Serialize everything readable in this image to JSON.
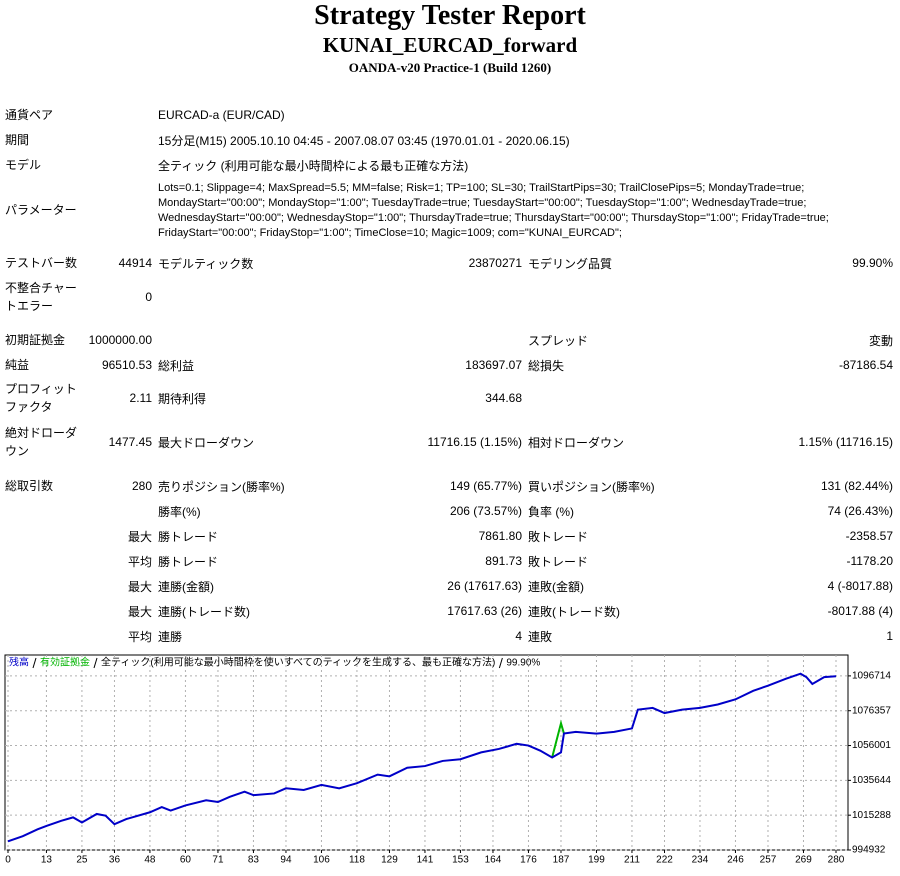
{
  "report": {
    "title": "Strategy Tester Report",
    "subtitle": "KUNAI_EURCAD_forward",
    "server": "OANDA-v20 Practice-1 (Build 1260)",
    "info": [
      {
        "label": "通貨ペア",
        "value": "EURCAD-a (EUR/CAD)"
      },
      {
        "label": "期間",
        "value": "15分足(M15) 2005.10.10 04:45 - 2007.08.07 03:45 (1970.01.01 - 2020.06.15)"
      },
      {
        "label": "モデル",
        "value": "全ティック (利用可能な最小時間枠による最も正確な方法)"
      }
    ],
    "parameters": {
      "label": "パラメーター",
      "lines": [
        "Lots=0.1; Slippage=4; MaxSpread=5.5; MM=false; Risk=1; TP=100; SL=30; TrailStartPips=30; TrailClosePips=5; MondayTrade=true;",
        "MondayStart=\"00:00\"; MondayStop=\"1:00\"; TuesdayTrade=true; TuesdayStart=\"00:00\"; TuesdayStop=\"1:00\"; WednesdayTrade=true;",
        "WednesdayStart=\"00:00\"; WednesdayStop=\"1:00\"; ThursdayTrade=true; ThursdayStart=\"00:00\"; ThursdayStop=\"1:00\"; FridayTrade=true;",
        "FridayStart=\"00:00\"; FridayStop=\"1:00\"; TimeClose=10; Magic=1009; com=\"KUNAI_EURCAD\";"
      ]
    },
    "stats": [
      {
        "label": "テストバー数",
        "value": "44914",
        "label2": "モデルティック数",
        "value2": "23870271",
        "label3": "モデリング品質",
        "value3": "99.90%"
      },
      {
        "label": "不整合チャートエラー",
        "value": "0"
      },
      {
        "label": "初期証拠金",
        "value": "1000000.00",
        "label3": "スプレッド",
        "value3": "変動"
      },
      {
        "label": "純益",
        "value": "96510.53",
        "label2": "総利益",
        "value2": "183697.07",
        "label3": "総損失",
        "value3": "-87186.54"
      },
      {
        "label": "プロフィットファクタ",
        "value": "2.11",
        "label2": "期待利得",
        "value2": "344.68"
      },
      {
        "label": "絶対ドローダウン",
        "value": "1477.45",
        "label2": "最大ドローダウン",
        "value2": "11716.15 (1.15%)",
        "label3": "相対ドローダウン",
        "value3": "1.15% (11716.15)"
      },
      {
        "label": "総取引数",
        "value": "280",
        "label2": "売りポジション(勝率%)",
        "value2": "149 (65.77%)",
        "label3": "買いポジション(勝率%)",
        "value3": "131 (82.44%)"
      },
      {
        "label2": "勝率(%)",
        "value2": "206 (73.57%)",
        "label3": "負率 (%)",
        "value3": "74 (26.43%)"
      },
      {
        "value": "最大",
        "label2": "勝トレード",
        "value2": "7861.80",
        "label3": "敗トレード",
        "value3": "-2358.57"
      },
      {
        "value": "平均",
        "label2": "勝トレード",
        "value2": "891.73",
        "label3": "敗トレード",
        "value3": "-1178.20"
      },
      {
        "value": "最大",
        "label2": "連勝(金額)",
        "value2": "26 (17617.63)",
        "label3": "連敗(金額)",
        "value3": "4 (-8017.88)"
      },
      {
        "value": "最大",
        "label2": "連勝(トレード数)",
        "value2": "17617.63 (26)",
        "label3": "連敗(トレード数)",
        "value3": "-8017.88 (4)"
      },
      {
        "value": "平均",
        "label2": "連勝",
        "value2": "4",
        "label3": "連敗",
        "value3": "1"
      }
    ]
  },
  "chart_data": {
    "type": "line",
    "model_note": "全ティック(利用可能な最小時間枠を使いすべてのティックを生成する、最も正確な方法)",
    "quality": "99.90%",
    "x": [
      0,
      5,
      10,
      13,
      18,
      22,
      25,
      30,
      33,
      36,
      40,
      48,
      52,
      55,
      60,
      67,
      71,
      75,
      80,
      83,
      90,
      94,
      100,
      106,
      112,
      118,
      125,
      129,
      135,
      141,
      147,
      153,
      160,
      166,
      172,
      176,
      180,
      184,
      187,
      188,
      192,
      199,
      205,
      211,
      213,
      218,
      222,
      228,
      234,
      240,
      246,
      252,
      257,
      263,
      268,
      270,
      272,
      276,
      280
    ],
    "series": [
      {
        "name": "残高",
        "color": "#0000c8",
        "values": [
          1000000,
          1003000,
          1007000,
          1009000,
          1012000,
          1014000,
          1011000,
          1016000,
          1015000,
          1010000,
          1013000,
          1017000,
          1020000,
          1018000,
          1021000,
          1024000,
          1023000,
          1026000,
          1029000,
          1027000,
          1028000,
          1031000,
          1030000,
          1033000,
          1031000,
          1034000,
          1039000,
          1038000,
          1043000,
          1044000,
          1047000,
          1048000,
          1052000,
          1054000,
          1057000,
          1056000,
          1053000,
          1049000,
          1052000,
          1063000,
          1064000,
          1063000,
          1064000,
          1066000,
          1077000,
          1078000,
          1075000,
          1077000,
          1078000,
          1080000,
          1083000,
          1088000,
          1091000,
          1095000,
          1098000,
          1096000,
          1092000,
          1096000,
          1096510
        ]
      },
      {
        "name": "有効証拠金",
        "color": "#00b400",
        "values": [
          null,
          null,
          null,
          null,
          null,
          null,
          null,
          null,
          null,
          null,
          null,
          null,
          null,
          null,
          null,
          null,
          null,
          null,
          null,
          null,
          null,
          null,
          null,
          null,
          null,
          null,
          null,
          null,
          null,
          null,
          null,
          null,
          null,
          null,
          null,
          null,
          null,
          1049000,
          1069000,
          1063000,
          null,
          null,
          null,
          null,
          null,
          null,
          null,
          null,
          null,
          null,
          null,
          null,
          null,
          null,
          null,
          null,
          null,
          null,
          null
        ]
      }
    ],
    "xlim": [
      0,
      284
    ],
    "ylim": [
      994932,
      1108928
    ],
    "xticks": [
      0,
      13,
      25,
      36,
      48,
      60,
      71,
      83,
      94,
      106,
      118,
      129,
      141,
      153,
      164,
      176,
      187,
      199,
      211,
      222,
      234,
      246,
      257,
      269,
      280
    ],
    "yticks": [
      994932,
      1015288,
      1035644,
      1056001,
      1076357,
      1096714
    ],
    "grid": true
  }
}
